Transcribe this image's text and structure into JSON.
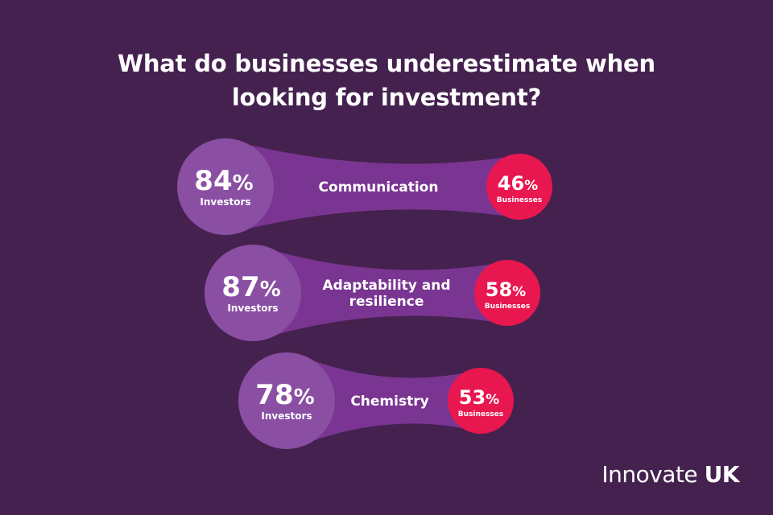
{
  "title_lines": [
    "What do businesses underestimate when",
    "looking for investment?"
  ],
  "brand": {
    "name": "Innovate",
    "suffix": "UK"
  },
  "colors": {
    "background": "#45214f",
    "investor_circle": "#8a4fa3",
    "connector": "#7a3592",
    "business_circle": "#e8174f",
    "text": "#ffffff"
  },
  "chart_data": {
    "type": "bar",
    "categories": [
      [
        "Communication"
      ],
      [
        "Adaptability and",
        "resilience"
      ],
      [
        "Chemistry"
      ]
    ],
    "series": [
      {
        "name": "Investors",
        "values": [
          84,
          87,
          78
        ]
      },
      {
        "name": "Businesses",
        "values": [
          46,
          58,
          53
        ]
      }
    ],
    "unit": "%"
  }
}
